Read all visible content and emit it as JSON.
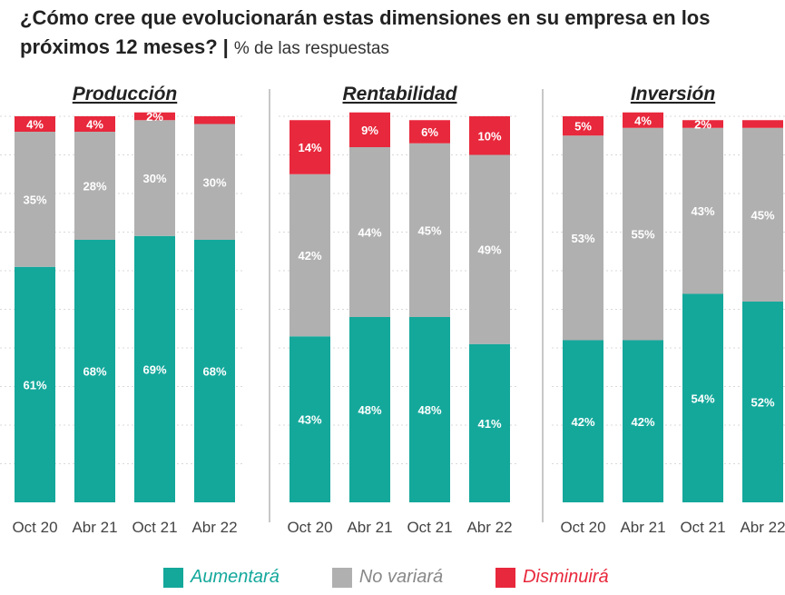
{
  "title": {
    "main_line1": "¿Cómo cree que evolucionarán estas dimensiones en su empresa en los",
    "main_line2": "próximos 12 meses?",
    "separator": "|",
    "subtitle": "% de las respuestas"
  },
  "colors": {
    "aumentara": "#14a89b",
    "no_variara": "#b0b0b0",
    "disminuira": "#e8283c"
  },
  "legend": [
    {
      "label": "Aumentará",
      "color": "#14a89b"
    },
    {
      "label": "No variará",
      "color": "#b0b0b0"
    },
    {
      "label": "Disminuirá",
      "color": "#e8283c"
    }
  ],
  "chart_data": [
    {
      "type": "bar",
      "stacked": true,
      "title": "Producción",
      "categories": [
        "Oct 20",
        "Abr 21",
        "Oct 21",
        "Abr 22"
      ],
      "ylim": [
        0,
        100
      ],
      "series": [
        {
          "name": "Aumentará",
          "values": [
            61,
            68,
            69,
            68
          ],
          "labels": [
            "61%",
            "68%",
            "69%",
            "68%"
          ]
        },
        {
          "name": "No variará",
          "values": [
            35,
            28,
            30,
            30
          ],
          "labels": [
            "35%",
            "28%",
            "30%",
            "30%"
          ]
        },
        {
          "name": "Disminuirá",
          "values": [
            4,
            4,
            2,
            2
          ],
          "labels": [
            "4%",
            "4%",
            "2%",
            ""
          ]
        }
      ]
    },
    {
      "type": "bar",
      "stacked": true,
      "title": "Rentabilidad",
      "categories": [
        "Oct 20",
        "Abr 21",
        "Oct 21",
        "Abr 22"
      ],
      "ylim": [
        0,
        100
      ],
      "series": [
        {
          "name": "Aumentará",
          "values": [
            43,
            48,
            48,
            41
          ],
          "labels": [
            "43%",
            "48%",
            "48%",
            "41%"
          ]
        },
        {
          "name": "No variará",
          "values": [
            42,
            44,
            45,
            49
          ],
          "labels": [
            "42%",
            "44%",
            "45%",
            "49%"
          ]
        },
        {
          "name": "Disminuirá",
          "values": [
            14,
            9,
            6,
            10
          ],
          "labels": [
            "14%",
            "9%",
            "6%",
            "10%"
          ]
        }
      ]
    },
    {
      "type": "bar",
      "stacked": true,
      "title": "Inversión",
      "categories": [
        "Oct 20",
        "Abr 21",
        "Oct 21",
        "Abr 22"
      ],
      "ylim": [
        0,
        100
      ],
      "series": [
        {
          "name": "Aumentará",
          "values": [
            42,
            42,
            54,
            52
          ],
          "labels": [
            "42%",
            "42%",
            "54%",
            "52%"
          ]
        },
        {
          "name": "No variará",
          "values": [
            53,
            55,
            43,
            45
          ],
          "labels": [
            "53%",
            "55%",
            "43%",
            "45%"
          ]
        },
        {
          "name": "Disminuirá",
          "values": [
            5,
            4,
            2,
            2
          ],
          "labels": [
            "5%",
            "4%",
            "2%",
            ""
          ]
        }
      ]
    }
  ]
}
